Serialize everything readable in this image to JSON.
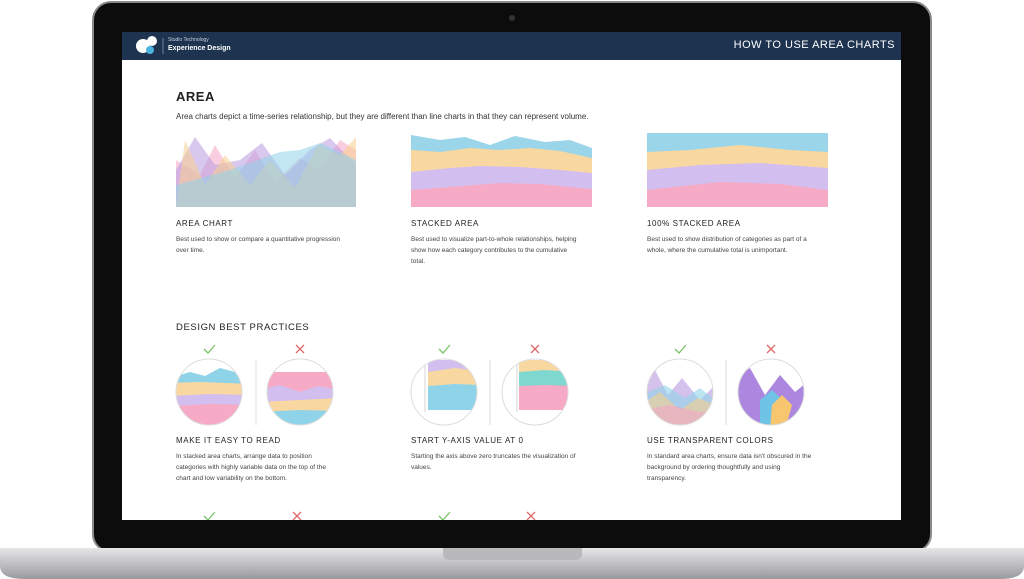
{
  "header": {
    "brand_small": "Studio Technology",
    "brand": "Experience Design",
    "title": "HOW TO USE AREA CHARTS"
  },
  "section": {
    "title": "AREA",
    "intro": "Area charts depict a time-series relationship, but they are different than line charts in that they can represent volume."
  },
  "chart_types": [
    {
      "title": "AREA CHART",
      "description": "Best used to show or compare a quantitative progression over time."
    },
    {
      "title": "STACKED AREA",
      "description": "Best used to visualize part-to-whole relationships, helping show how each category contributes to the cumulative total."
    },
    {
      "title": "100% STACKED AREA",
      "description": "Best used to show distribution of categories as part of a whole, where the cumulative total is unimportant."
    }
  ],
  "practices": {
    "title": "DESIGN BEST PRACTICES",
    "items": [
      {
        "title": "MAKE IT EASY TO READ",
        "description": "In stacked area charts, arrange data to position categories with highly variable data on the top of the chart and low variability on the bottom."
      },
      {
        "title": "START Y-AXIS VALUE AT 0",
        "description": "Starting the axis above zero truncates the visualization of values."
      },
      {
        "title": "USE TRANSPARENT COLORS",
        "description": "In standard area charts, ensure data isn't obscured in the background by ordering thoughtfully and using transparency."
      }
    ]
  }
}
